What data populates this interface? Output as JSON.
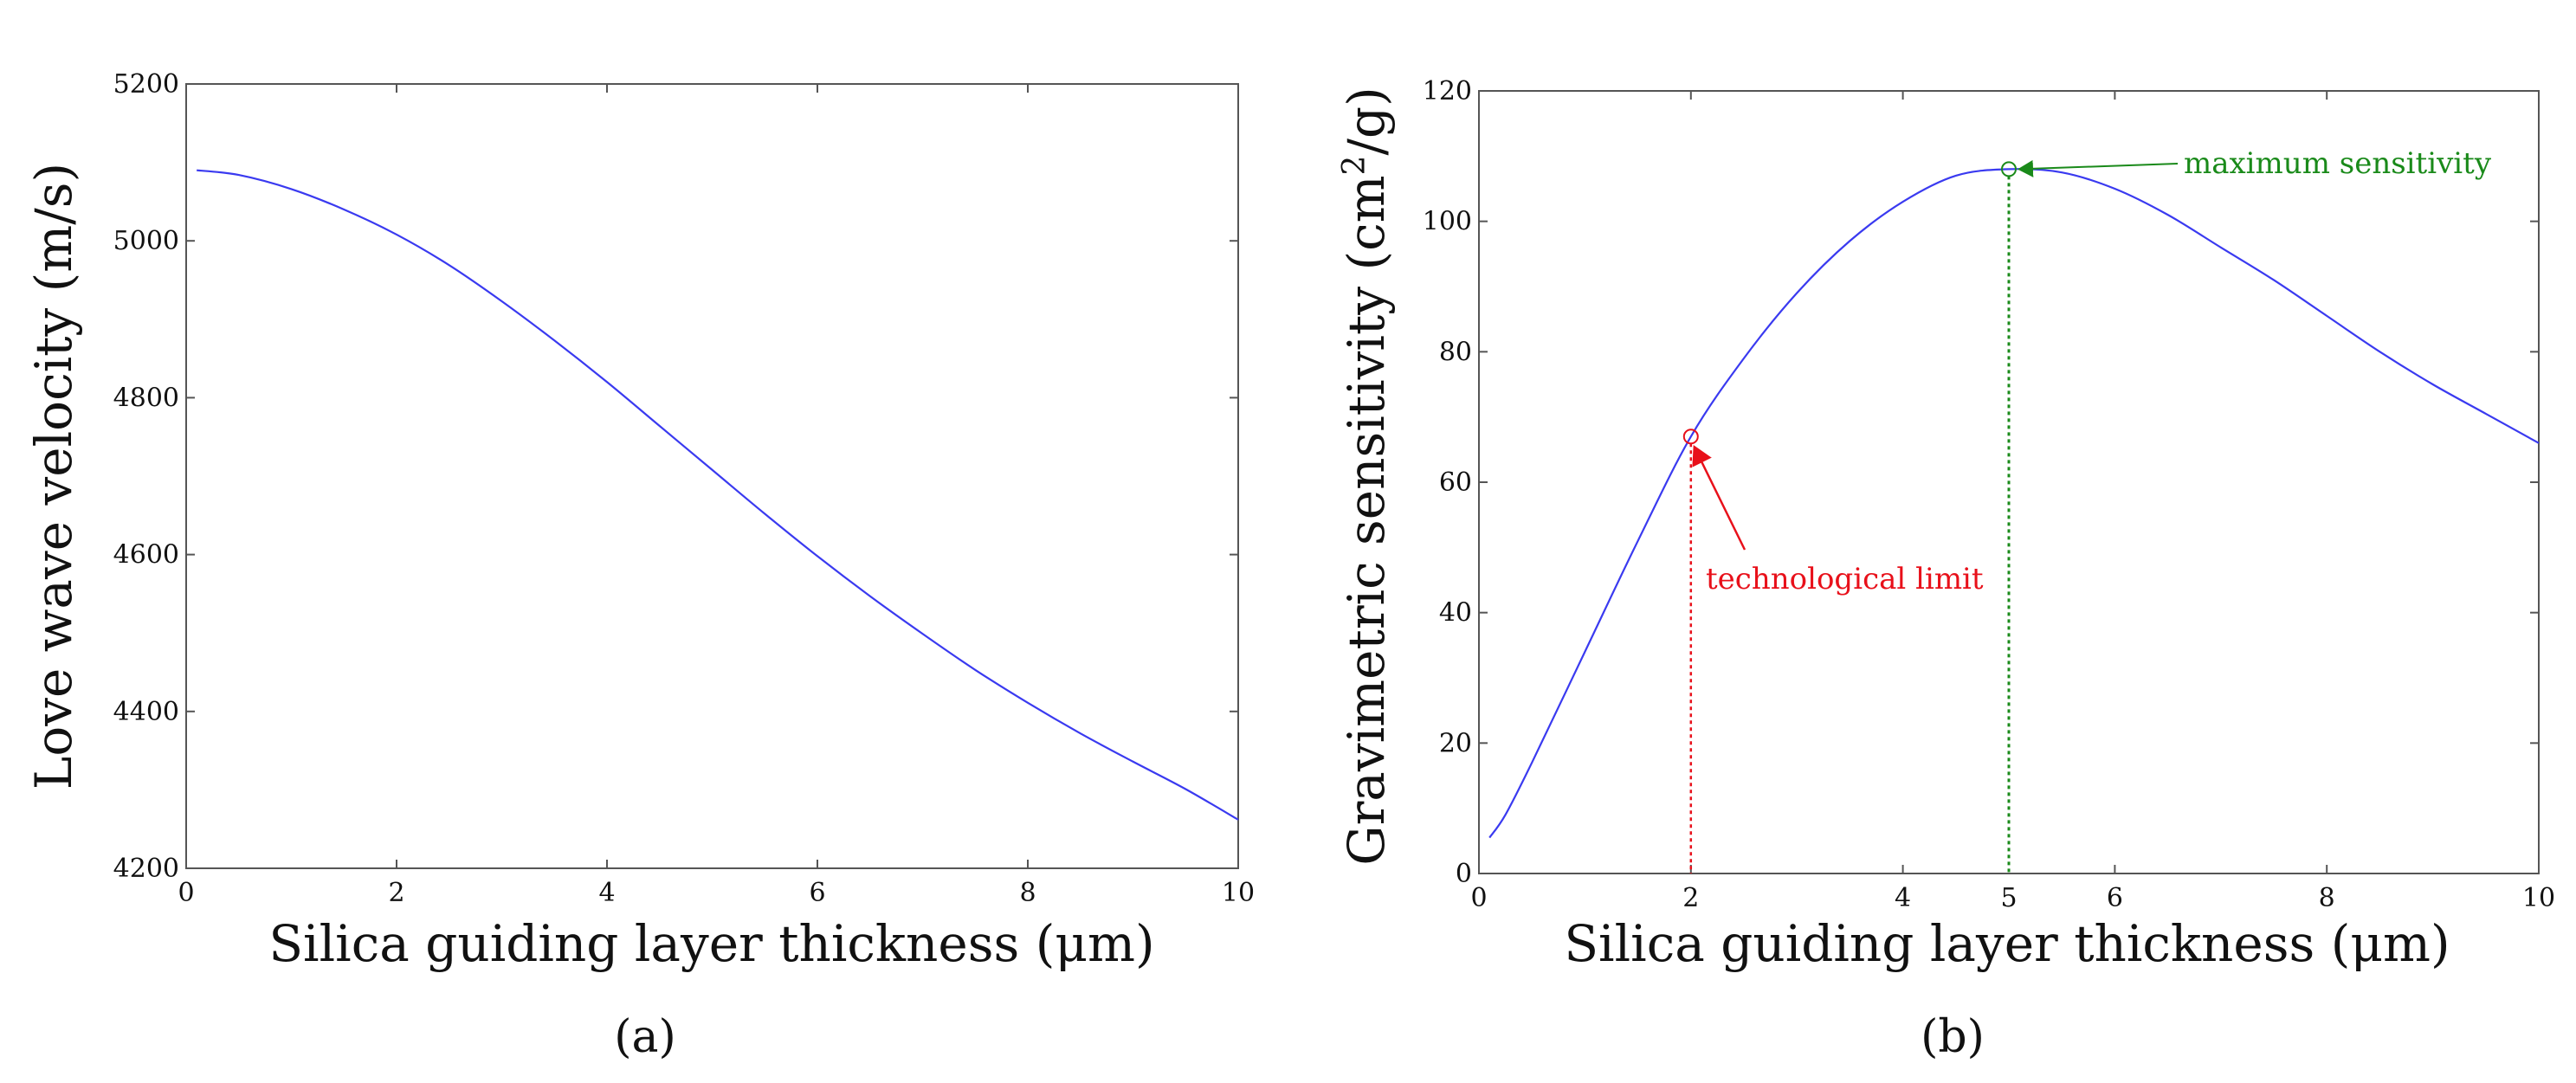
{
  "chart_data": [
    {
      "type": "line",
      "panel_label": "(a)",
      "xlabel": "Silica guiding layer thickness (μm)",
      "ylabel": "Love wave velocity (m/s)",
      "xlim": [
        0,
        10
      ],
      "ylim": [
        4200,
        5200
      ],
      "xticks": [
        0,
        2,
        4,
        6,
        8,
        10
      ],
      "yticks": [
        4200,
        4400,
        4600,
        4800,
        5000,
        5200
      ],
      "grid": false,
      "line_color": "#3a3af0",
      "series": [
        {
          "name": "velocity",
          "x": [
            0.1,
            0.5,
            1,
            1.5,
            2,
            2.5,
            3,
            3.5,
            4,
            4.5,
            5,
            5.5,
            6,
            6.5,
            7,
            7.5,
            8,
            8.5,
            9,
            9.5,
            10
          ],
          "y": [
            5090,
            5084,
            5066,
            5040,
            5008,
            4969,
            4923,
            4873,
            4820,
            4764,
            4708,
            4652,
            4598,
            4547,
            4499,
            4453,
            4411,
            4372,
            4336,
            4301,
            4262
          ]
        }
      ]
    },
    {
      "type": "line",
      "panel_label": "(b)",
      "xlabel": "Silica guiding layer thickness (μm)",
      "ylabel_main": "Gravimetric sensitivity (cm",
      "ylabel_sup": "2",
      "ylabel_tail": "/g)",
      "xlim": [
        0,
        10
      ],
      "ylim": [
        0,
        120
      ],
      "xticks": [
        0,
        2,
        4,
        6,
        8,
        10
      ],
      "yticks": [
        0,
        20,
        40,
        60,
        80,
        100,
        120
      ],
      "grid": false,
      "line_color": "#3a3af0",
      "series": [
        {
          "name": "sensitivity",
          "x": [
            0.1,
            0.25,
            0.5,
            1,
            1.5,
            2,
            2.5,
            3,
            3.5,
            4,
            4.5,
            5,
            5.5,
            6,
            6.5,
            7,
            7.5,
            8,
            8.5,
            9,
            9.5,
            10
          ],
          "y": [
            5.5,
            9,
            17,
            34,
            51,
            67,
            79,
            89,
            97,
            103,
            107,
            108,
            107.5,
            105,
            101,
            96,
            91,
            85.5,
            80,
            75,
            70.5,
            66
          ]
        }
      ],
      "annotations": [
        {
          "label": "technological limit",
          "x": 2,
          "y": 67,
          "color": "#e8101a",
          "tick_label": "2"
        },
        {
          "label": "maximum sensitivity",
          "x": 5,
          "y": 108,
          "color": "#1a8a1a",
          "tick_label": "5"
        }
      ]
    }
  ]
}
